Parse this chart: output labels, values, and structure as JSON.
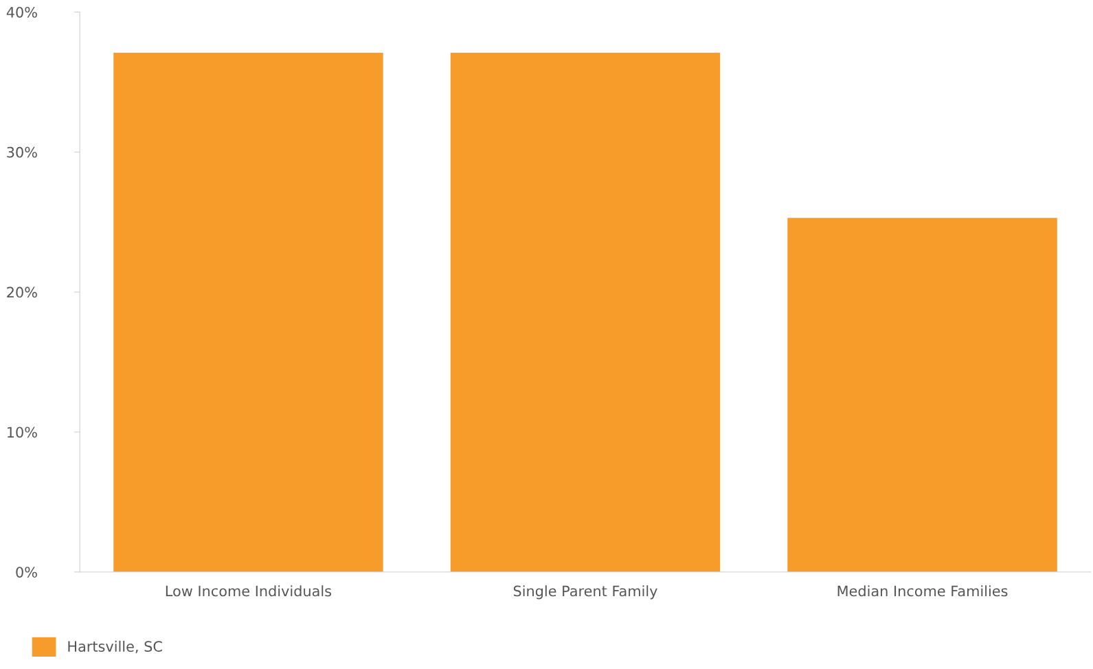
{
  "chart_data": {
    "type": "bar",
    "categories": [
      "Low Income Individuals",
      "Single Parent Family",
      "Median Income Families"
    ],
    "series": [
      {
        "name": "Hartsville, SC",
        "color": "#f79b2a",
        "values": [
          37.1,
          37.1,
          25.3
        ]
      }
    ],
    "ylim": [
      0,
      40
    ],
    "yticks": [
      {
        "value": 0,
        "label": "0%"
      },
      {
        "value": 10,
        "label": "10%"
      },
      {
        "value": 20,
        "label": "20%"
      },
      {
        "value": 30,
        "label": "30%"
      },
      {
        "value": 40,
        "label": "40%"
      }
    ],
    "grid": false,
    "legend": "bottom left"
  }
}
